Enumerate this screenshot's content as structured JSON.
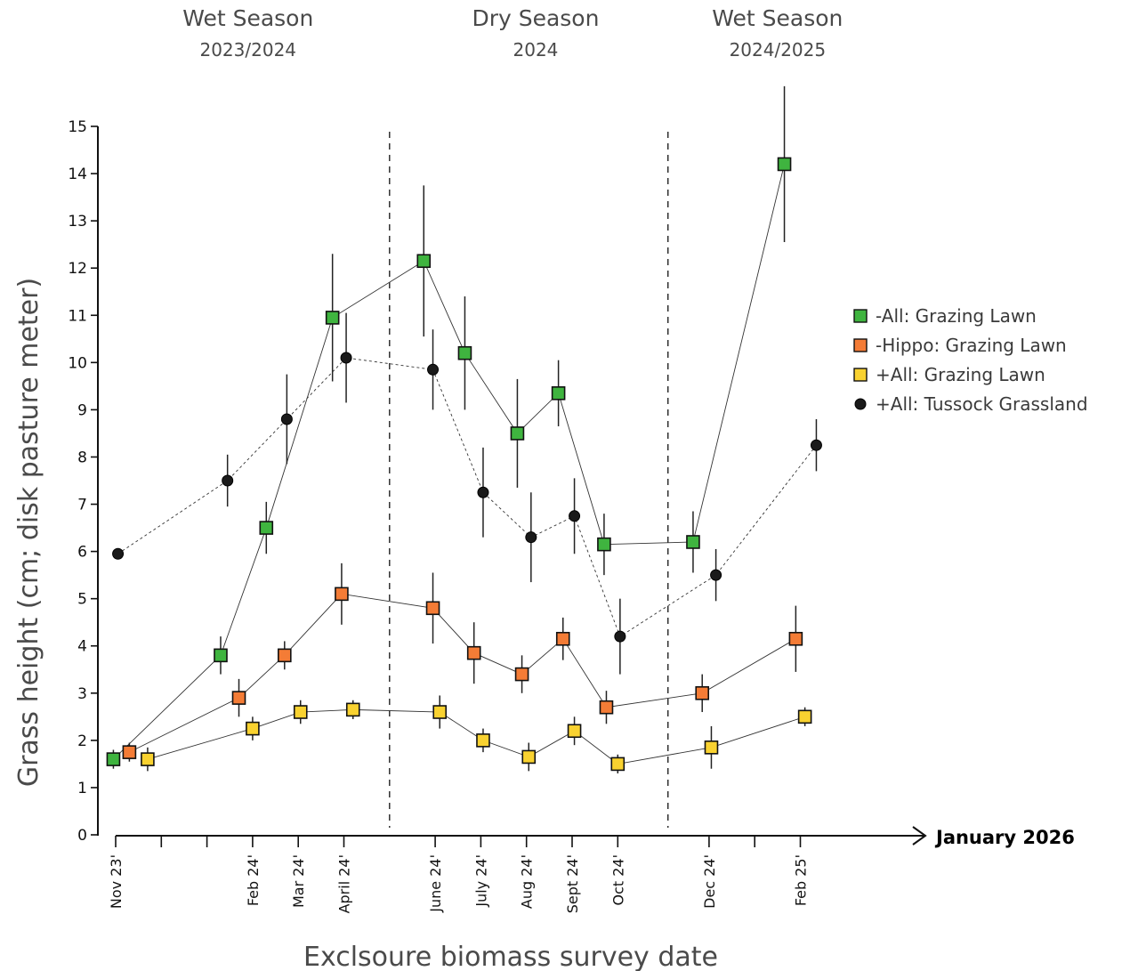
{
  "chart_data": {
    "type": "line",
    "ylabel": "Grass height (cm; disk pasture meter)",
    "xlabel": "Exclsoure biomass survey date",
    "axis_end_label": "January 2026",
    "ylim": [
      0,
      15
    ],
    "yticks": [
      "0",
      "1",
      "2",
      "3",
      "4",
      "5",
      "6",
      "7",
      "8",
      "9",
      "10",
      "11",
      "12",
      "13",
      "14",
      "15"
    ],
    "x_ticks": [
      {
        "label": "Nov 23'",
        "pos": 0
      },
      {
        "label": "",
        "pos": 1
      },
      {
        "label": "",
        "pos": 2
      },
      {
        "label": "Feb 24'",
        "pos": 3
      },
      {
        "label": "Mar 24'",
        "pos": 4
      },
      {
        "label": "April 24'",
        "pos": 5
      },
      {
        "label": "June 24'",
        "pos": 7
      },
      {
        "label": "July 24'",
        "pos": 8
      },
      {
        "label": "Aug 24'",
        "pos": 9
      },
      {
        "label": "Sept 24'",
        "pos": 10
      },
      {
        "label": "Oct 24'",
        "pos": 11
      },
      {
        "label": "Dec 24'",
        "pos": 13
      },
      {
        "label": "",
        "pos": 14
      },
      {
        "label": "Feb 25'",
        "pos": 15
      }
    ],
    "season_dividers": [
      6,
      12.1
    ],
    "seasons": [
      {
        "name": "Wet Season",
        "years": "2023/2024",
        "center": 2.9
      },
      {
        "name": "Dry Season",
        "years": "2024",
        "center": 9.2
      },
      {
        "name": "Wet Season",
        "years": "2024/2025",
        "center": 14.5
      }
    ],
    "legend_position": "right",
    "series": [
      {
        "name": "-All: Grazing Lawn",
        "color": "#3fb43f",
        "marker": "square",
        "line": "solid",
        "points": [
          {
            "x": -0.05,
            "y": 1.6,
            "err": 0.2
          },
          {
            "x": 2.3,
            "y": 3.8,
            "err": 0.4
          },
          {
            "x": 3.3,
            "y": 6.5,
            "err": 0.55
          },
          {
            "x": 4.75,
            "y": 10.95,
            "err": 1.35
          },
          {
            "x": 6.75,
            "y": 12.15,
            "err": 1.6
          },
          {
            "x": 7.65,
            "y": 10.2,
            "err": 1.2
          },
          {
            "x": 8.8,
            "y": 8.5,
            "err": 1.15
          },
          {
            "x": 9.7,
            "y": 9.35,
            "err": 0.7
          },
          {
            "x": 10.7,
            "y": 6.15,
            "err": 0.65
          },
          {
            "x": 12.65,
            "y": 6.2,
            "err": 0.65
          },
          {
            "x": 14.65,
            "y": 14.2,
            "err": 1.65
          }
        ]
      },
      {
        "name": "-Hippo: Grazing Lawn",
        "color": "#f47c36",
        "marker": "square",
        "line": "solid",
        "points": [
          {
            "x": 0.3,
            "y": 1.75,
            "err": 0.2
          },
          {
            "x": 2.7,
            "y": 2.9,
            "err": 0.4
          },
          {
            "x": 3.7,
            "y": 3.8,
            "err": 0.3
          },
          {
            "x": 4.95,
            "y": 5.1,
            "err": 0.65
          },
          {
            "x": 6.95,
            "y": 4.8,
            "err": 0.75
          },
          {
            "x": 7.85,
            "y": 3.85,
            "err": 0.65
          },
          {
            "x": 8.9,
            "y": 3.4,
            "err": 0.4
          },
          {
            "x": 9.8,
            "y": 4.15,
            "err": 0.45
          },
          {
            "x": 10.75,
            "y": 2.7,
            "err": 0.35
          },
          {
            "x": 12.85,
            "y": 3.0,
            "err": 0.4
          },
          {
            "x": 14.9,
            "y": 4.15,
            "err": 0.7
          }
        ]
      },
      {
        "name": "+All: Grazing Lawn",
        "color": "#f9d230",
        "marker": "square",
        "line": "solid",
        "points": [
          {
            "x": 0.7,
            "y": 1.6,
            "err": 0.25
          },
          {
            "x": 3.0,
            "y": 2.25,
            "err": 0.25
          },
          {
            "x": 4.05,
            "y": 2.6,
            "err": 0.25
          },
          {
            "x": 5.2,
            "y": 2.65,
            "err": 0.2
          },
          {
            "x": 7.1,
            "y": 2.6,
            "err": 0.35
          },
          {
            "x": 8.05,
            "y": 2.0,
            "err": 0.25
          },
          {
            "x": 9.05,
            "y": 1.65,
            "err": 0.3
          },
          {
            "x": 10.05,
            "y": 2.2,
            "err": 0.3
          },
          {
            "x": 11.0,
            "y": 1.5,
            "err": 0.2
          },
          {
            "x": 13.05,
            "y": 1.85,
            "err": 0.45
          },
          {
            "x": 15.1,
            "y": 2.5,
            "err": 0.2
          }
        ]
      },
      {
        "name": "+All: Tussock Grassland",
        "color": "#1a1a1a",
        "marker": "circle",
        "line": "dotted",
        "points": [
          {
            "x": 0.05,
            "y": 5.95,
            "err": 0
          },
          {
            "x": 2.45,
            "y": 7.5,
            "err": 0.55
          },
          {
            "x": 3.75,
            "y": 8.8,
            "err": 0.95
          },
          {
            "x": 5.05,
            "y": 10.1,
            "err": 0.95
          },
          {
            "x": 6.95,
            "y": 9.85,
            "err": 0.85
          },
          {
            "x": 8.05,
            "y": 7.25,
            "err": 0.95
          },
          {
            "x": 9.1,
            "y": 6.3,
            "err": 0.95
          },
          {
            "x": 10.05,
            "y": 6.75,
            "err": 0.8
          },
          {
            "x": 11.05,
            "y": 4.2,
            "err": 0.8
          },
          {
            "x": 13.15,
            "y": 5.5,
            "err": 0.55
          },
          {
            "x": 15.35,
            "y": 8.25,
            "err": 0.55
          }
        ]
      }
    ]
  }
}
